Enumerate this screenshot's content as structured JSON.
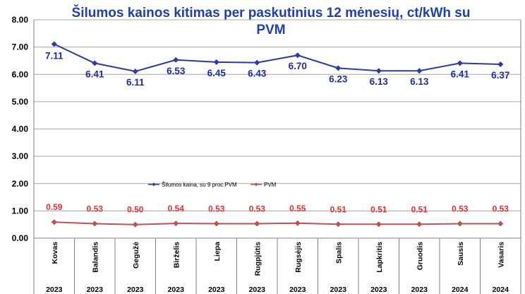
{
  "chart_data": {
    "type": "line",
    "title_lines": [
      "Šilumos kainos kitimas per paskutinius 12 mėnesių, ct/kWh su",
      "PVM"
    ],
    "categories": [
      "Kovas",
      "Balandis",
      "Gegužė",
      "Birželis",
      "Liepa",
      "Rugpjūtis",
      "Rugsėjis",
      "Spalis",
      "Lapkritis",
      "Gruodis",
      "Sausis",
      "Vasaris"
    ],
    "years": [
      "2023",
      "2023",
      "2023",
      "2023",
      "2023",
      "2023",
      "2023",
      "2023",
      "2023",
      "2023",
      "2024",
      "2024"
    ],
    "series": [
      {
        "name": "Šilumos kaina, su 9 proc.PVM",
        "color": "#2a3aa8",
        "label_color": "#1f2f9c",
        "values": [
          7.11,
          6.41,
          6.11,
          6.53,
          6.45,
          6.43,
          6.7,
          6.23,
          6.13,
          6.13,
          6.41,
          6.37
        ],
        "labels": [
          "7.11",
          "6.41",
          "6.11",
          "6.53",
          "6.45",
          "6.43",
          "6.70",
          "6.23",
          "6.13",
          "6.13",
          "6.41",
          "6.37"
        ]
      },
      {
        "name": "PVM",
        "color": "#c0504d",
        "label_color": "#e03030",
        "values": [
          0.59,
          0.53,
          0.5,
          0.54,
          0.53,
          0.53,
          0.55,
          0.51,
          0.51,
          0.51,
          0.53,
          0.53
        ],
        "labels": [
          "0.59",
          "0.53",
          "0.50",
          "0.54",
          "0.53",
          "0.53",
          "0.55",
          "0.51",
          "0.51",
          "0.51",
          "0.53",
          "0.53"
        ]
      }
    ],
    "yticks": [
      "0.00",
      "1.00",
      "2.00",
      "3.00",
      "4.00",
      "5.00",
      "6.00",
      "7.00",
      "8.00"
    ],
    "ylim": [
      0,
      8
    ],
    "grid": true,
    "legend": "center-inside",
    "colors": {
      "title": "#1f3fb2",
      "grid": "#a6a6a6",
      "axis": "#808080"
    }
  }
}
